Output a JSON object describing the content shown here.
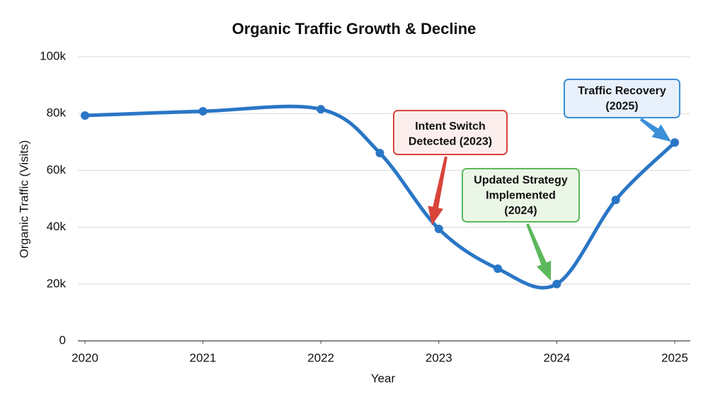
{
  "chart_data": {
    "type": "line",
    "title": "Organic Traffic Growth & Decline",
    "x_label": "Year",
    "y_label": "Organic Traffic (Visits)",
    "xlim": [
      2020,
      2025
    ],
    "xticks": [
      2020,
      2021,
      2022,
      2023,
      2024,
      2025
    ],
    "ylim": [
      0,
      100000
    ],
    "yticks": [
      0,
      {
        "value": 20000,
        "label": "20k"
      },
      {
        "value": 40000,
        "label": "40k"
      },
      {
        "value": 60000,
        "label": "60k"
      },
      {
        "value": 80000,
        "label": "80k"
      },
      {
        "value": 100000,
        "label": "100k"
      }
    ],
    "grid": true,
    "x": [
      2020,
      2021,
      2022,
      2022.5,
      2023,
      2023.5,
      2024,
      2024.5,
      2025
    ],
    "series": [
      {
        "color": "#2a76c6",
        "values": [
          79300,
          80800,
          81500,
          66100,
          39400,
          25400,
          20000,
          49600,
          69800
        ]
      }
    ],
    "annotations": [
      {
        "text": [
          "Intent Switch",
          "Detected (2023)"
        ],
        "color": "#d9443a"
      },
      {
        "text": [
          "Updated Strategy",
          "Implemented",
          "(2024)"
        ],
        "color": "#5cb85c"
      },
      {
        "text": [
          "Traffic Recovery",
          "(2025)"
        ],
        "color": "#3a8fd8"
      }
    ]
  }
}
